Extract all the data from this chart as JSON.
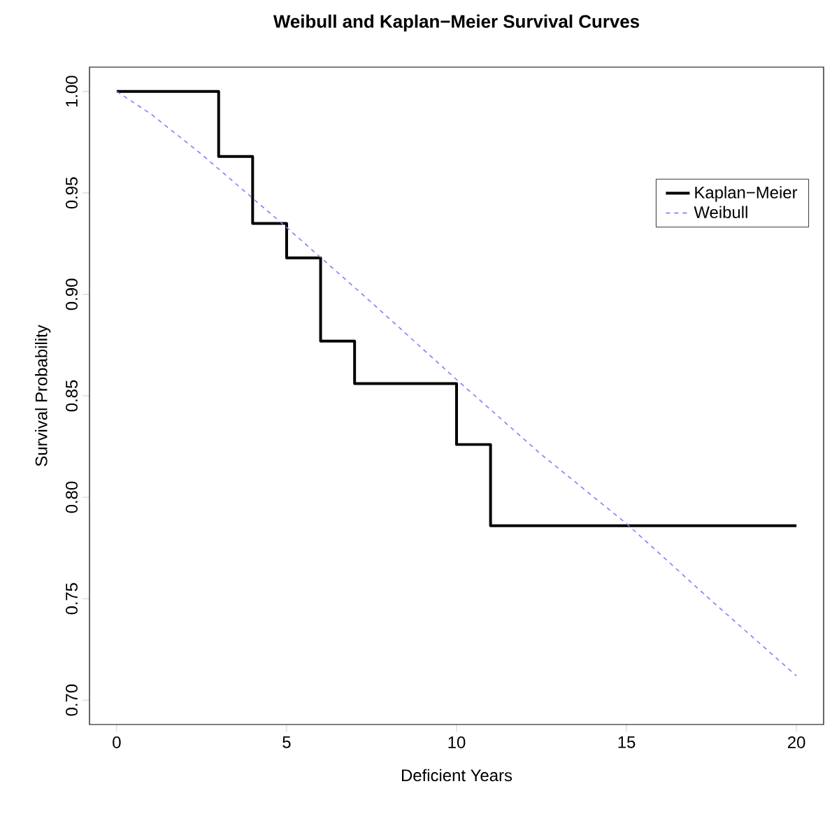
{
  "chart_data": {
    "type": "step",
    "title": "Weibull and Kaplan−Meier Survival Curves",
    "xlabel": "Deficient Years",
    "ylabel": "Survival Probability",
    "series": [
      {
        "name": "Kaplan−Meier",
        "color": "#000000",
        "line_style": "solid",
        "x": [
          0,
          3,
          4,
          5,
          6,
          7,
          10,
          11,
          20
        ],
        "values": [
          1,
          0.968,
          0.935,
          0.918,
          0.877,
          0.856,
          0.826,
          0.786,
          0.786
        ]
      },
      {
        "name": "Weibull",
        "type": "line",
        "color": "#7f7fff",
        "line_style": "dashed",
        "x": [
          0,
          1,
          2.5,
          5,
          7.5,
          10,
          12.5,
          15,
          17.5,
          20
        ],
        "values": [
          1,
          0.989,
          0.969,
          0.933,
          0.896,
          0.858,
          0.821,
          0.787,
          0.749,
          0.712
        ]
      }
    ],
    "xlim": [
      -0.8,
      20.8
    ],
    "ylim": [
      0.688,
      1.012
    ],
    "xticks": [
      0,
      5,
      10,
      15,
      20
    ],
    "yticks": [
      {
        "value": 0.7,
        "label": "0.70"
      },
      {
        "value": 0.75,
        "label": "0.75"
      },
      {
        "value": 0.8,
        "label": "0.80"
      },
      {
        "value": 0.85,
        "label": "0.85"
      },
      {
        "value": 0.9,
        "label": "0.90"
      },
      {
        "value": 0.95,
        "label": "0.95"
      },
      {
        "value": 1.0,
        "label": "1.00"
      }
    ],
    "legend": "top right",
    "grid": false
  }
}
